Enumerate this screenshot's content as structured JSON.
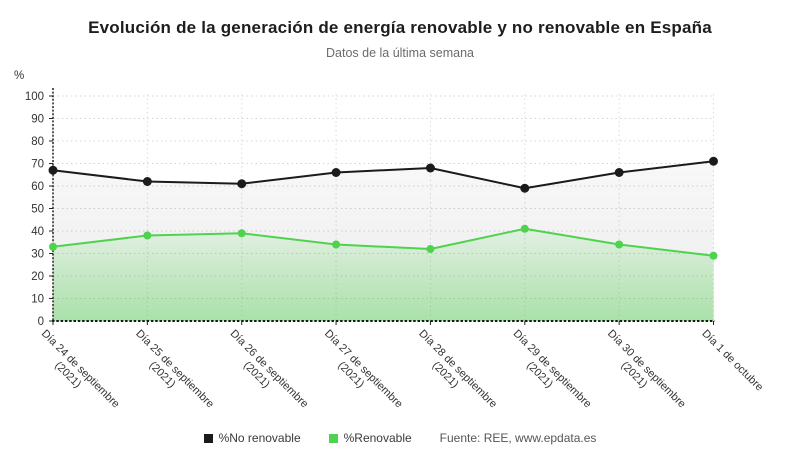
{
  "header": {
    "title": "Evolución de la generación de energía renovable y no renovable en España",
    "subtitle": "Datos de la última semana"
  },
  "chart_data": {
    "type": "line",
    "title": "Evolución de la generación de energía renovable y no renovable en España",
    "subtitle": "Datos de la última semana",
    "y_unit": "%",
    "ylabel": "%",
    "xlabel": "",
    "ylim": [
      0,
      100
    ],
    "ytick_step": 10,
    "grid": true,
    "legend_position": "bottom",
    "categories": [
      "Día 24 de septiembre (2021)",
      "Día 25 de septiembre (2021)",
      "Día 26 de septiembre (2021)",
      "Día 27 de septiembre (2021)",
      "Día 28 de septiembre (2021)",
      "Día 29 de septiembre (2021)",
      "Día 30 de septiembre (2021)",
      "Día 1 de octubre"
    ],
    "series": [
      {
        "name": "%No renovable",
        "color": "#1b1b1b",
        "area": true,
        "values": [
          67,
          62,
          61,
          66,
          68,
          59,
          66,
          71
        ]
      },
      {
        "name": "%Renovable",
        "color": "#4fd34f",
        "area": true,
        "values": [
          33,
          38,
          39,
          34,
          32,
          41,
          34,
          29
        ]
      }
    ]
  },
  "legend": {
    "items": [
      {
        "label": "%No renovable",
        "color": "#1b1b1b"
      },
      {
        "label": "%Renovable",
        "color": "#4fd34f"
      }
    ],
    "source": "Fuente: REE, www.epdata.es"
  }
}
